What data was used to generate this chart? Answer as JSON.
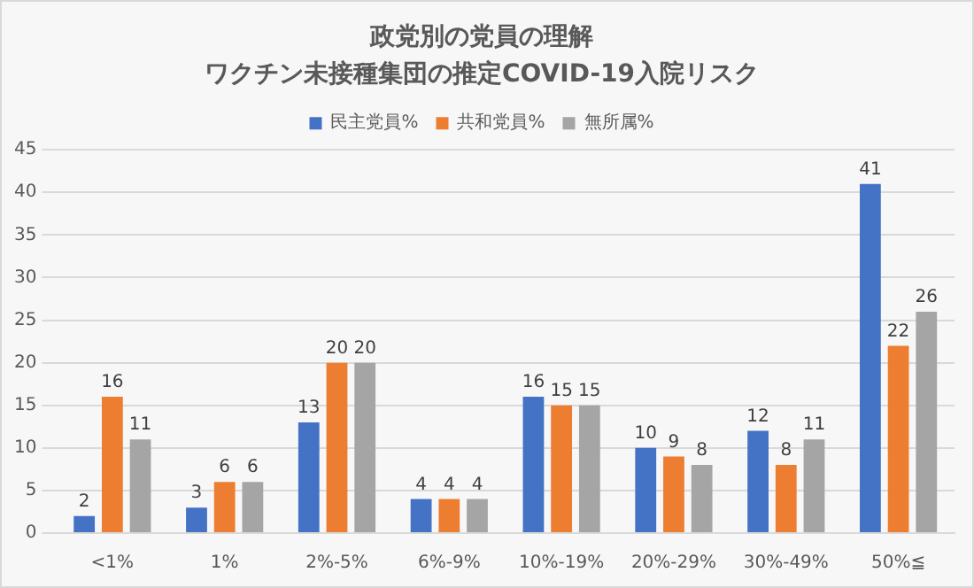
{
  "chart_data": {
    "type": "bar",
    "title": "政党別の党員の理解",
    "subtitle": "ワクチン未接種集団の推定COVID-19入院リスク",
    "categories": [
      "<1%",
      "1%",
      "2%-5%",
      "6%-9%",
      "10%-19%",
      "20%-29%",
      "30%-49%",
      "50%≦"
    ],
    "series": [
      {
        "name": "民主党員%",
        "color": "#4472c4",
        "values": [
          2,
          3,
          13,
          4,
          16,
          10,
          12,
          41
        ]
      },
      {
        "name": "共和党員%",
        "color": "#ed7d31",
        "values": [
          16,
          6,
          20,
          4,
          15,
          9,
          8,
          22
        ]
      },
      {
        "name": "無所属%",
        "color": "#a5a5a5",
        "values": [
          11,
          6,
          20,
          4,
          15,
          8,
          11,
          26
        ]
      }
    ],
    "ylim": [
      0,
      45
    ],
    "yticks": [
      0,
      5,
      10,
      15,
      20,
      25,
      30,
      35,
      40,
      45
    ],
    "grid": "y",
    "legend": "top",
    "data_labels": true
  }
}
